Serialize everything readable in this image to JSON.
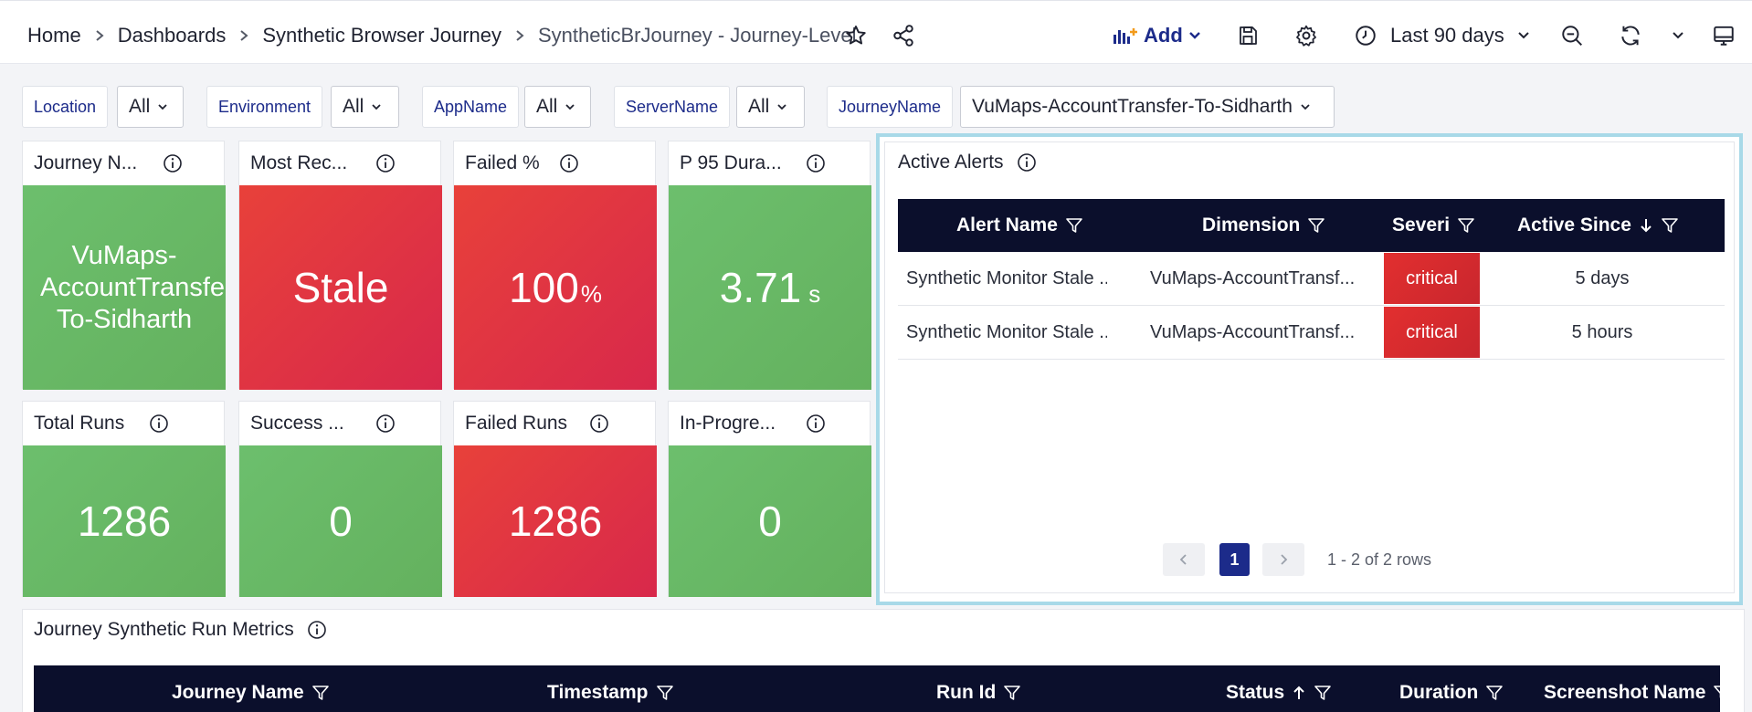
{
  "breadcrumb": {
    "items": [
      "Home",
      "Dashboards",
      "Synthetic Browser Journey"
    ],
    "current": "SyntheticBrJourney - Journey-Level"
  },
  "toolbar": {
    "add_label": "Add",
    "time_range": "Last 90 days",
    "icons": [
      "star-icon",
      "share-icon",
      "add-panel-icon",
      "save-icon",
      "settings-icon",
      "clock-icon",
      "zoom-out-icon",
      "refresh-icon",
      "monitor-icon"
    ]
  },
  "filters": [
    {
      "label": "Location",
      "value": "All"
    },
    {
      "label": "Environment",
      "value": "All"
    },
    {
      "label": "AppName",
      "value": "All"
    },
    {
      "label": "ServerName",
      "value": "All"
    },
    {
      "label": "JourneyName",
      "value": "VuMaps-AccountTransfer-To-Sidharth"
    }
  ],
  "cards": [
    {
      "title": "Journey N...",
      "lines": [
        "VuMaps-",
        "AccountTransfe",
        "To-Sidharth"
      ],
      "color": "green"
    },
    {
      "title": "Most Rec...",
      "value": "Stale",
      "color": "red"
    },
    {
      "title": "Failed %",
      "value": "100",
      "unit": "%",
      "color": "red"
    },
    {
      "title": "P 95 Dura...",
      "value": "3.71",
      "unit": "s",
      "color": "green"
    },
    {
      "title": "Total Runs",
      "value": "1286",
      "color": "green"
    },
    {
      "title": "Success ...",
      "value": "0",
      "color": "green"
    },
    {
      "title": "Failed Runs",
      "value": "1286",
      "color": "red"
    },
    {
      "title": "In-Progre...",
      "value": "0",
      "color": "green"
    }
  ],
  "alerts": {
    "title": "Active Alerts",
    "columns": [
      "Alert Name",
      "Dimension",
      "Severi",
      "Active Since"
    ],
    "rows": [
      {
        "name": "Synthetic Monitor Stale ...",
        "dimension": "VuMaps-AccountTransf...",
        "severity": "critical",
        "since": "5 days"
      },
      {
        "name": "Synthetic Monitor Stale ...",
        "dimension": "VuMaps-AccountTransf...",
        "severity": "critical",
        "since": "5 hours"
      }
    ],
    "pagination": {
      "page": "1",
      "summary": "1 - 2 of 2 rows"
    }
  },
  "metrics": {
    "title": "Journey Synthetic Run Metrics",
    "columns": [
      "Journey Name",
      "Timestamp",
      "Run Id",
      "Status",
      "Duration",
      "Screenshot Name"
    ]
  },
  "colors": {
    "accent": "#1c2b8a",
    "tile_green": "#6ab866",
    "tile_red": "#e0333f",
    "table_header": "#0b0f2c",
    "selection_border": "#a8d9e8"
  }
}
